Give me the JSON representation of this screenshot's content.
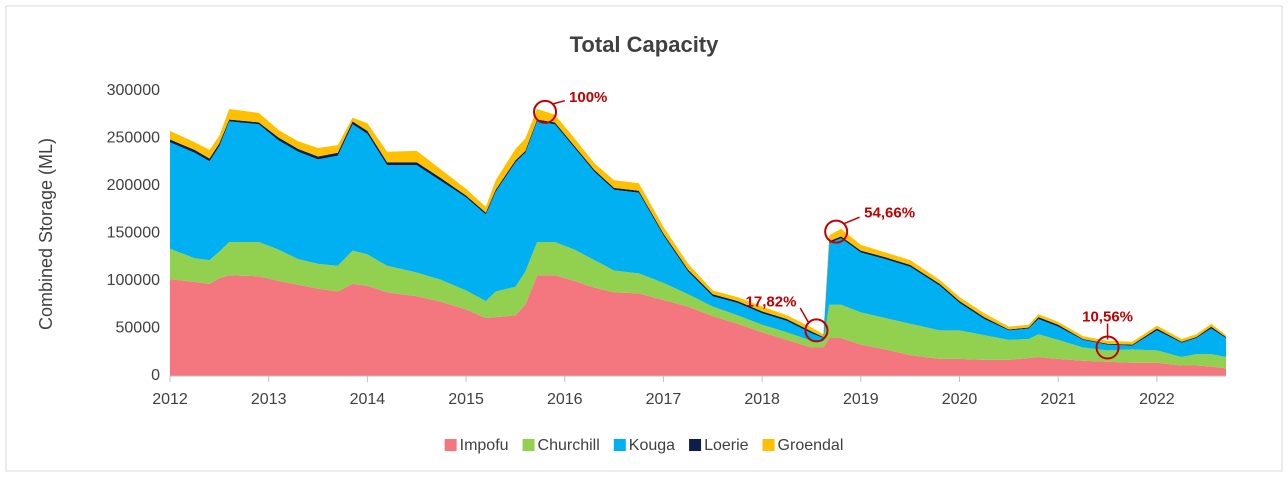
{
  "chart_data": {
    "type": "stacked_area",
    "title": "Total Capacity",
    "y_label": "Combined Storage (ML)",
    "x": [
      2012.0,
      2012.25,
      2012.4,
      2012.5,
      2012.6,
      2012.9,
      2013.1,
      2013.3,
      2013.5,
      2013.7,
      2013.85,
      2014.0,
      2014.2,
      2014.5,
      2014.75,
      2015.0,
      2015.2,
      2015.3,
      2015.5,
      2015.6,
      2015.72,
      2015.9,
      2016.1,
      2016.3,
      2016.5,
      2016.75,
      2017.0,
      2017.25,
      2017.5,
      2017.75,
      2018.0,
      2018.25,
      2018.5,
      2018.62,
      2018.68,
      2018.8,
      2019.0,
      2019.25,
      2019.5,
      2019.8,
      2020.0,
      2020.25,
      2020.5,
      2020.7,
      2020.8,
      2021.0,
      2021.25,
      2021.5,
      2021.75,
      2022.0,
      2022.25,
      2022.4,
      2022.55,
      2022.7
    ],
    "series": [
      {
        "name": "Impofu",
        "color": "#f4777f",
        "values": [
          102000,
          99000,
          97000,
          103000,
          106000,
          105000,
          100000,
          96000,
          92000,
          89000,
          97000,
          95000,
          88000,
          84000,
          78000,
          70000,
          61000,
          62000,
          64000,
          75000,
          106000,
          106000,
          100000,
          93000,
          88000,
          87000,
          80000,
          73000,
          63000,
          55000,
          46000,
          38000,
          30000,
          30000,
          40000,
          40000,
          33000,
          28000,
          22000,
          18000,
          18000,
          17000,
          17000,
          19000,
          20000,
          18000,
          16000,
          15000,
          14000,
          14000,
          11000,
          11000,
          10000,
          8000
        ]
      },
      {
        "name": "Churchill",
        "color": "#92d050",
        "values": [
          32000,
          25000,
          25000,
          28000,
          35000,
          36000,
          33000,
          27000,
          26000,
          27000,
          35000,
          33000,
          28000,
          25000,
          23000,
          20000,
          18000,
          27000,
          30000,
          35000,
          35000,
          35000,
          33000,
          29000,
          23000,
          21000,
          18000,
          13000,
          10000,
          9000,
          8000,
          8000,
          7000,
          6000,
          35000,
          35000,
          34000,
          33000,
          33000,
          30000,
          30000,
          26000,
          21000,
          20000,
          24000,
          20000,
          14000,
          12000,
          14000,
          13000,
          9000,
          12000,
          13000,
          12000
        ]
      },
      {
        "name": "Kouga",
        "color": "#00b0f0",
        "values": [
          112000,
          111000,
          104000,
          111000,
          127000,
          124000,
          115000,
          113000,
          110000,
          116000,
          133000,
          127000,
          106000,
          113000,
          104000,
          98000,
          91000,
          105000,
          131000,
          125000,
          127000,
          124000,
          107000,
          93000,
          85000,
          85000,
          50000,
          24000,
          11000,
          13000,
          12000,
          12000,
          8000,
          4000,
          65000,
          70000,
          63000,
          62000,
          60000,
          47000,
          29000,
          17000,
          10000,
          11000,
          16000,
          14000,
          8000,
          6000,
          4000,
          21000,
          15000,
          17000,
          27000,
          20000
        ]
      },
      {
        "name": "Loerie",
        "color": "#0d1e4a",
        "values": [
          3000,
          3000,
          3000,
          3000,
          2000,
          2000,
          3000,
          3000,
          3000,
          3000,
          3000,
          3000,
          3000,
          3000,
          3000,
          2000,
          2000,
          2000,
          2000,
          2000,
          2000,
          2000,
          2000,
          2000,
          2000,
          2000,
          2000,
          2000,
          2000,
          2000,
          2000,
          2000,
          2000,
          1000,
          2000,
          2000,
          2000,
          2000,
          2000,
          2000,
          2000,
          2000,
          1000,
          1000,
          2000,
          2000,
          1000,
          1000,
          1000,
          2000,
          1000,
          1000,
          2000,
          1000
        ]
      },
      {
        "name": "Groendal",
        "color": "#ffc000",
        "values": [
          9000,
          8000,
          9000,
          8000,
          11000,
          10000,
          8000,
          8000,
          9000,
          8000,
          4000,
          8000,
          11000,
          12000,
          9000,
          7000,
          6000,
          10000,
          12000,
          13000,
          11000,
          8000,
          8000,
          7000,
          8000,
          8000,
          7000,
          6000,
          4000,
          4000,
          5000,
          4000,
          4000,
          3000,
          6000,
          8000,
          6000,
          5000,
          5000,
          4000,
          4000,
          4000,
          3000,
          3000,
          3000,
          3000,
          3000,
          3000,
          3000,
          3000,
          3000,
          3000,
          3000,
          2000
        ]
      }
    ],
    "xlim": [
      2012,
      2022.7
    ],
    "xticks": [
      2012,
      2013,
      2014,
      2015,
      2016,
      2017,
      2018,
      2019,
      2020,
      2021,
      2022
    ],
    "ylim": [
      0,
      300000
    ],
    "yticks": [
      0,
      50000,
      100000,
      150000,
      200000,
      250000,
      300000
    ],
    "legend": "bottom",
    "annotations": [
      {
        "text": "100%",
        "x": 2015.8,
        "y": 278000
      },
      {
        "text": "17,82%",
        "x": 2018.55,
        "y": 48000
      },
      {
        "text": "54,66%",
        "x": 2018.75,
        "y": 152000
      },
      {
        "text": "10,56%",
        "x": 2021.5,
        "y": 30000
      }
    ]
  }
}
